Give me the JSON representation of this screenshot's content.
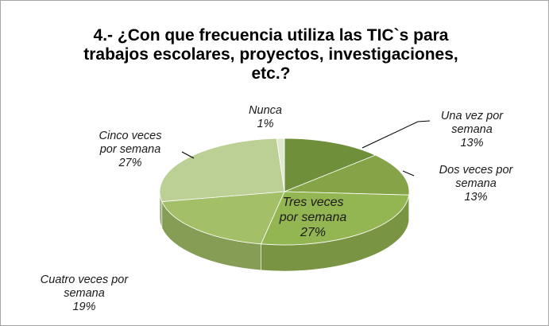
{
  "chart_data": {
    "type": "pie",
    "title": "4.- ¿Con que frecuencia utiliza las TIC`s para trabajos escolares, proyectos, investigaciones, etc.?",
    "categories": [
      "Una vez por semana",
      "Dos veces por semana",
      "Tres veces por semana",
      "Cuatro veces por semana",
      "Cinco veces por semana",
      "Nunca"
    ],
    "values": [
      13,
      13,
      27,
      19,
      27,
      1
    ],
    "value_labels": [
      "13%",
      "13%",
      "27%",
      "19%",
      "27%",
      "1%"
    ],
    "colors": [
      "#6f8f3a",
      "#84a447",
      "#93b552",
      "#a3bf68",
      "#bccf95",
      "#e0e8cf"
    ]
  }
}
